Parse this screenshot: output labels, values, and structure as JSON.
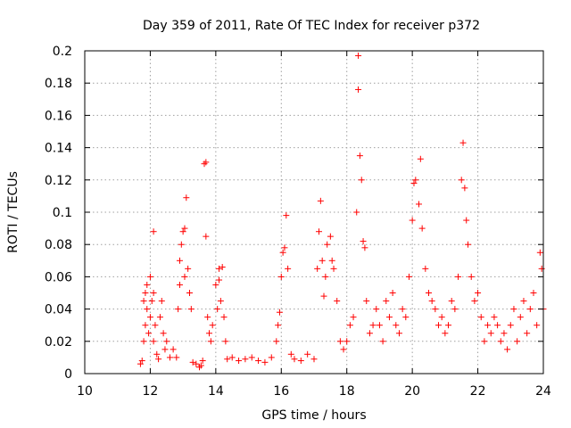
{
  "chart_data": {
    "type": "scatter",
    "title": "Day 359 of 2011, Rate Of TEC Index for receiver p372",
    "xlabel": "GPS time / hours",
    "ylabel": "ROTI / TECUs",
    "xlim": [
      10,
      24
    ],
    "ylim": [
      0,
      0.2
    ],
    "xticks": [
      "10",
      "12",
      "14",
      "16",
      "18",
      "20",
      "22",
      "24"
    ],
    "yticks": [
      "0",
      "0.02",
      "0.04",
      "0.06",
      "0.08",
      "0.1",
      "0.12",
      "0.14",
      "0.16",
      "0.18",
      "0.2"
    ],
    "grid": true,
    "marker": "+",
    "color": "#ff0000",
    "series": [
      {
        "points": [
          [
            11.7,
            0.006
          ],
          [
            11.75,
            0.008
          ],
          [
            11.8,
            0.02
          ],
          [
            11.8,
            0.045
          ],
          [
            11.85,
            0.03
          ],
          [
            11.85,
            0.05
          ],
          [
            11.9,
            0.04
          ],
          [
            11.9,
            0.055
          ],
          [
            11.95,
            0.025
          ],
          [
            12.0,
            0.06
          ],
          [
            12.0,
            0.035
          ],
          [
            12.05,
            0.045
          ],
          [
            12.1,
            0.05
          ],
          [
            12.1,
            0.02
          ],
          [
            12.15,
            0.03
          ],
          [
            12.1,
            0.088
          ],
          [
            12.2,
            0.012
          ],
          [
            12.25,
            0.009
          ],
          [
            12.3,
            0.035
          ],
          [
            12.35,
            0.045
          ],
          [
            12.4,
            0.025
          ],
          [
            12.45,
            0.015
          ],
          [
            12.5,
            0.02
          ],
          [
            12.6,
            0.01
          ],
          [
            12.7,
            0.015
          ],
          [
            12.8,
            0.01
          ],
          [
            12.85,
            0.04
          ],
          [
            12.9,
            0.055
          ],
          [
            12.9,
            0.07
          ],
          [
            12.95,
            0.08
          ],
          [
            13.0,
            0.088
          ],
          [
            13.05,
            0.09
          ],
          [
            13.05,
            0.06
          ],
          [
            13.1,
            0.109
          ],
          [
            13.15,
            0.065
          ],
          [
            13.2,
            0.05
          ],
          [
            13.25,
            0.04
          ],
          [
            13.3,
            0.007
          ],
          [
            13.4,
            0.006
          ],
          [
            13.5,
            0.004
          ],
          [
            13.55,
            0.005
          ],
          [
            13.6,
            0.008
          ],
          [
            13.65,
            0.13
          ],
          [
            13.7,
            0.131
          ],
          [
            13.7,
            0.085
          ],
          [
            13.75,
            0.035
          ],
          [
            13.8,
            0.025
          ],
          [
            13.85,
            0.02
          ],
          [
            13.9,
            0.03
          ],
          [
            14.0,
            0.055
          ],
          [
            14.05,
            0.04
          ],
          [
            14.1,
            0.058
          ],
          [
            14.1,
            0.065
          ],
          [
            14.15,
            0.045
          ],
          [
            14.2,
            0.066
          ],
          [
            14.25,
            0.035
          ],
          [
            14.3,
            0.02
          ],
          [
            14.35,
            0.009
          ],
          [
            14.5,
            0.01
          ],
          [
            14.7,
            0.008
          ],
          [
            14.9,
            0.009
          ],
          [
            15.1,
            0.01
          ],
          [
            15.3,
            0.008
          ],
          [
            15.5,
            0.007
          ],
          [
            15.7,
            0.01
          ],
          [
            15.85,
            0.02
          ],
          [
            15.9,
            0.03
          ],
          [
            15.95,
            0.038
          ],
          [
            16.0,
            0.06
          ],
          [
            16.05,
            0.075
          ],
          [
            16.1,
            0.078
          ],
          [
            16.15,
            0.098
          ],
          [
            16.2,
            0.065
          ],
          [
            16.3,
            0.012
          ],
          [
            16.4,
            0.009
          ],
          [
            16.6,
            0.008
          ],
          [
            16.8,
            0.012
          ],
          [
            17.0,
            0.009
          ],
          [
            17.1,
            0.065
          ],
          [
            17.15,
            0.088
          ],
          [
            17.2,
            0.107
          ],
          [
            17.25,
            0.07
          ],
          [
            17.3,
            0.048
          ],
          [
            17.35,
            0.06
          ],
          [
            17.4,
            0.08
          ],
          [
            17.5,
            0.085
          ],
          [
            17.55,
            0.07
          ],
          [
            17.6,
            0.065
          ],
          [
            17.7,
            0.045
          ],
          [
            17.8,
            0.02
          ],
          [
            17.9,
            0.015
          ],
          [
            18.0,
            0.02
          ],
          [
            18.1,
            0.03
          ],
          [
            18.2,
            0.035
          ],
          [
            18.3,
            0.1
          ],
          [
            18.35,
            0.197
          ],
          [
            18.35,
            0.176
          ],
          [
            18.4,
            0.135
          ],
          [
            18.45,
            0.12
          ],
          [
            18.5,
            0.082
          ],
          [
            18.55,
            0.078
          ],
          [
            18.6,
            0.045
          ],
          [
            18.7,
            0.025
          ],
          [
            18.8,
            0.03
          ],
          [
            18.9,
            0.04
          ],
          [
            19.0,
            0.03
          ],
          [
            19.1,
            0.02
          ],
          [
            19.2,
            0.045
          ],
          [
            19.3,
            0.035
          ],
          [
            19.4,
            0.05
          ],
          [
            19.5,
            0.03
          ],
          [
            19.6,
            0.025
          ],
          [
            19.7,
            0.04
          ],
          [
            19.8,
            0.035
          ],
          [
            19.9,
            0.06
          ],
          [
            20.0,
            0.095
          ],
          [
            20.05,
            0.118
          ],
          [
            20.1,
            0.12
          ],
          [
            20.2,
            0.105
          ],
          [
            20.25,
            0.133
          ],
          [
            20.3,
            0.09
          ],
          [
            20.4,
            0.065
          ],
          [
            20.5,
            0.05
          ],
          [
            20.6,
            0.045
          ],
          [
            20.7,
            0.04
          ],
          [
            20.8,
            0.03
          ],
          [
            20.9,
            0.035
          ],
          [
            21.0,
            0.025
          ],
          [
            21.1,
            0.03
          ],
          [
            21.2,
            0.045
          ],
          [
            21.3,
            0.04
          ],
          [
            21.4,
            0.06
          ],
          [
            21.5,
            0.12
          ],
          [
            21.55,
            0.143
          ],
          [
            21.6,
            0.115
          ],
          [
            21.65,
            0.095
          ],
          [
            21.7,
            0.08
          ],
          [
            21.8,
            0.06
          ],
          [
            21.9,
            0.045
          ],
          [
            22.0,
            0.05
          ],
          [
            22.1,
            0.035
          ],
          [
            22.2,
            0.02
          ],
          [
            22.3,
            0.03
          ],
          [
            22.4,
            0.025
          ],
          [
            22.5,
            0.035
          ],
          [
            22.6,
            0.03
          ],
          [
            22.7,
            0.02
          ],
          [
            22.8,
            0.025
          ],
          [
            22.9,
            0.015
          ],
          [
            23.0,
            0.03
          ],
          [
            23.1,
            0.04
          ],
          [
            23.2,
            0.02
          ],
          [
            23.3,
            0.035
          ],
          [
            23.4,
            0.045
          ],
          [
            23.5,
            0.025
          ],
          [
            23.6,
            0.04
          ],
          [
            23.7,
            0.05
          ],
          [
            23.8,
            0.03
          ],
          [
            23.9,
            0.075
          ],
          [
            23.95,
            0.065
          ],
          [
            24.0,
            0.04
          ]
        ]
      }
    ]
  }
}
